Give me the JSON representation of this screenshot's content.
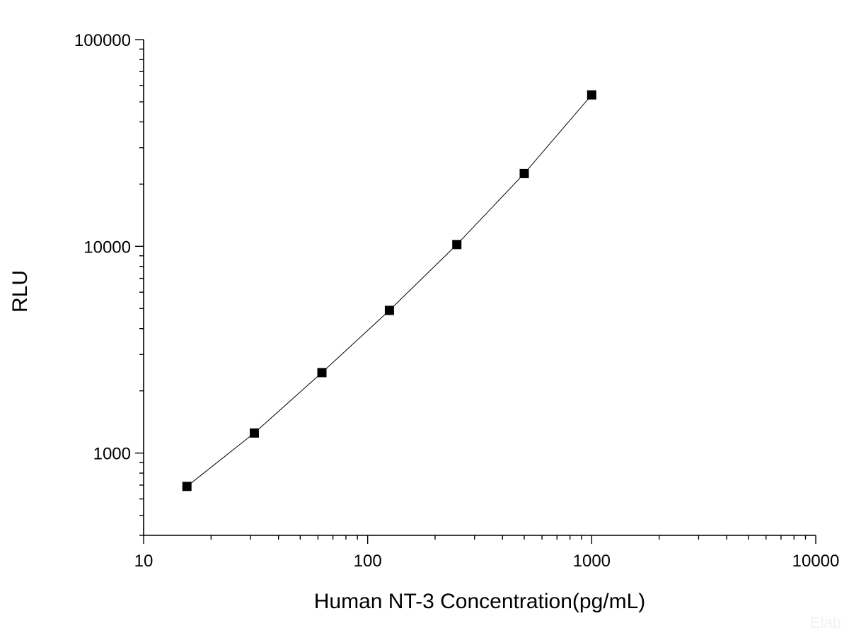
{
  "chart_data": {
    "type": "scatter",
    "title": "",
    "xlabel": "Human NT-3 Concentration(pg/mL)",
    "ylabel": "RLU",
    "x_scale": "log",
    "y_scale": "log",
    "xlim": [
      10,
      10000
    ],
    "ylim": [
      400,
      100000
    ],
    "x_ticks": [
      10,
      100,
      1000,
      10000
    ],
    "x_tick_labels": [
      "10",
      "100",
      "1000",
      "10000"
    ],
    "y_ticks": [
      1000,
      10000,
      100000
    ],
    "y_tick_labels": [
      "1000",
      "10000",
      "100000"
    ],
    "grid": false,
    "legend": "none",
    "marker": "square",
    "fit_line": true,
    "colors": {
      "points": "#000000",
      "line": "#000000",
      "axes": "#000000"
    },
    "series": [
      {
        "x": [
          15.6,
          31.2,
          62.5,
          125,
          250,
          500,
          1000
        ],
        "y": [
          690,
          1250,
          2450,
          4900,
          10200,
          22500,
          54000
        ]
      }
    ]
  },
  "watermark": "Elab"
}
